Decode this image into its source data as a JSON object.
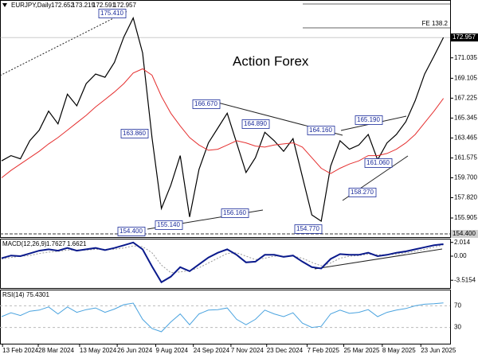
{
  "chart_data": {
    "type": "line",
    "symbol": "EURJPY,Daily",
    "ohlc": [
      172.652,
      173.219,
      172.591,
      172.957
    ],
    "watermark": "Action Forex",
    "fe_label": "FE 138.2",
    "xlim": [
      0,
      47.8
    ],
    "x": [
      0,
      1,
      2,
      3,
      4,
      5,
      6,
      7,
      8,
      9,
      10,
      11,
      12,
      13,
      14,
      15,
      16,
      17,
      18,
      19,
      20,
      21,
      22,
      23,
      24,
      25,
      26,
      27,
      28,
      29,
      30,
      31,
      32,
      33,
      34,
      35,
      36,
      37,
      38,
      39,
      40,
      41,
      42,
      43,
      44,
      45,
      46,
      47
    ],
    "xticks": [
      {
        "value": 0.1,
        "label": "13 Feb 2024"
      },
      {
        "value": 3.9,
        "label": "28 Mar 2024"
      },
      {
        "value": 8.3,
        "label": "13 May 2024"
      },
      {
        "value": 12.3,
        "label": "26 Jun 2024"
      },
      {
        "value": 16.4,
        "label": "9 Aug 2024"
      },
      {
        "value": 20.4,
        "label": "24 Sep 2024"
      },
      {
        "value": 24.4,
        "label": "7 Nov 2024"
      },
      {
        "value": 28.2,
        "label": "23 Dec 2024"
      },
      {
        "value": 32.5,
        "label": "7 Feb 2025"
      },
      {
        "value": 36.4,
        "label": "25 Mar 2025"
      },
      {
        "value": 40.5,
        "label": "8 May 2025"
      },
      {
        "value": 44.6,
        "label": "23 Jun 2025"
      }
    ],
    "ylim": [
      154.1,
      176.5
    ],
    "yticks": [
      171.035,
      169.105,
      167.225,
      165.345,
      163.465,
      161.575,
      {
        "value": 159.7,
        "label": "159.700"
      },
      {
        "value": 157.82,
        "label": "157.820"
      },
      155.905
    ],
    "support": {
      "value": 154.4,
      "label": "154.400"
    },
    "series": [
      {
        "name": "Close",
        "color": "#000000",
        "values": [
          161.3,
          161.8,
          161.5,
          163.2,
          164.2,
          166.0,
          164.8,
          167.6,
          166.5,
          168.6,
          169.5,
          169.2,
          170.6,
          173.0,
          174.8,
          171.5,
          163.5,
          156.8,
          159.0,
          161.8,
          156.0,
          160.5,
          163.0,
          164.4,
          165.8,
          163.0,
          160.2,
          161.6,
          164.0,
          163.2,
          162.2,
          163.4,
          159.8,
          156.2,
          155.6,
          160.8,
          163.2,
          162.4,
          162.8,
          163.8,
          161.4,
          163.0,
          163.8,
          165.0,
          167.0,
          169.5,
          171.2,
          172.957
        ]
      },
      {
        "name": "MA",
        "color": "#e53030",
        "values": [
          159.7,
          160.4,
          161.0,
          161.6,
          162.2,
          162.9,
          163.5,
          164.2,
          164.9,
          165.6,
          166.4,
          167.1,
          167.8,
          168.6,
          169.6,
          170.0,
          169.4,
          167.4,
          165.8,
          164.6,
          163.5,
          162.8,
          162.3,
          162.4,
          162.8,
          163.2,
          163.0,
          162.7,
          162.6,
          162.8,
          162.9,
          163.0,
          162.6,
          161.6,
          160.6,
          160.1,
          160.6,
          161.0,
          161.3,
          161.8,
          161.8,
          162.0,
          162.4,
          163.0,
          163.8,
          164.9,
          166.0,
          167.2
        ]
      }
    ],
    "price_labels": [
      "175.410",
      "163.860",
      "166.670",
      "164.890",
      "164.160",
      "165.190",
      "161.060",
      "158.270",
      "156.160",
      "155.140",
      "154.770",
      "154.400"
    ],
    "macd": {
      "title": "MACD(12,26,9)",
      "current": [
        1.7627,
        1.6621
      ],
      "ylim": [
        -4.65,
        2.56
      ],
      "yticks": [
        2.014,
        {
          "value": 0,
          "label": "0.00"
        },
        -3.5154
      ],
      "main": [
        -0.3,
        0.1,
        0.0,
        0.4,
        0.8,
        1.0,
        0.8,
        1.2,
        0.8,
        1.0,
        1.2,
        0.9,
        1.2,
        1.6,
        2.0,
        1.0,
        -1.5,
        -3.8,
        -3.0,
        -1.6,
        -2.2,
        -1.2,
        -0.2,
        0.5,
        1.0,
        0.2,
        -0.9,
        -0.8,
        0.2,
        0.2,
        -0.1,
        0.1,
        -0.8,
        -1.6,
        -1.8,
        -0.4,
        0.3,
        0.2,
        0.2,
        0.5,
        0.0,
        0.2,
        0.5,
        0.7,
        1.0,
        1.3,
        1.6,
        1.7627
      ],
      "signal": [
        -0.4,
        -0.2,
        0.0,
        0.1,
        0.4,
        0.6,
        0.7,
        0.9,
        0.9,
        0.9,
        1.0,
        1.0,
        1.0,
        1.2,
        1.5,
        1.4,
        0.5,
        -1.3,
        -2.4,
        -2.3,
        -2.1,
        -1.7,
        -1.0,
        -0.3,
        0.4,
        0.5,
        0.0,
        -0.5,
        -0.3,
        0.0,
        0.0,
        0.0,
        -0.3,
        -0.9,
        -1.4,
        -1.0,
        -0.3,
        0.0,
        0.1,
        0.3,
        0.2,
        0.2,
        0.3,
        0.5,
        0.7,
        1.0,
        1.3,
        1.6621
      ],
      "main_color": "#0a1a8c",
      "signal_color": "#999999"
    },
    "rsi": {
      "title": "RSI(14)",
      "current": 75.4301,
      "ylim": [
        0,
        100
      ],
      "yticks": [
        70,
        30
      ],
      "color": "#4aa3df",
      "values": [
        50,
        57,
        52,
        60,
        62,
        68,
        55,
        68,
        58,
        63,
        66,
        58,
        64,
        72,
        75,
        45,
        28,
        22,
        40,
        55,
        35,
        55,
        62,
        63,
        66,
        45,
        35,
        45,
        62,
        55,
        50,
        57,
        38,
        30,
        32,
        55,
        62,
        56,
        58,
        63,
        50,
        58,
        62,
        65,
        70,
        73,
        74,
        75.4301
      ]
    }
  }
}
